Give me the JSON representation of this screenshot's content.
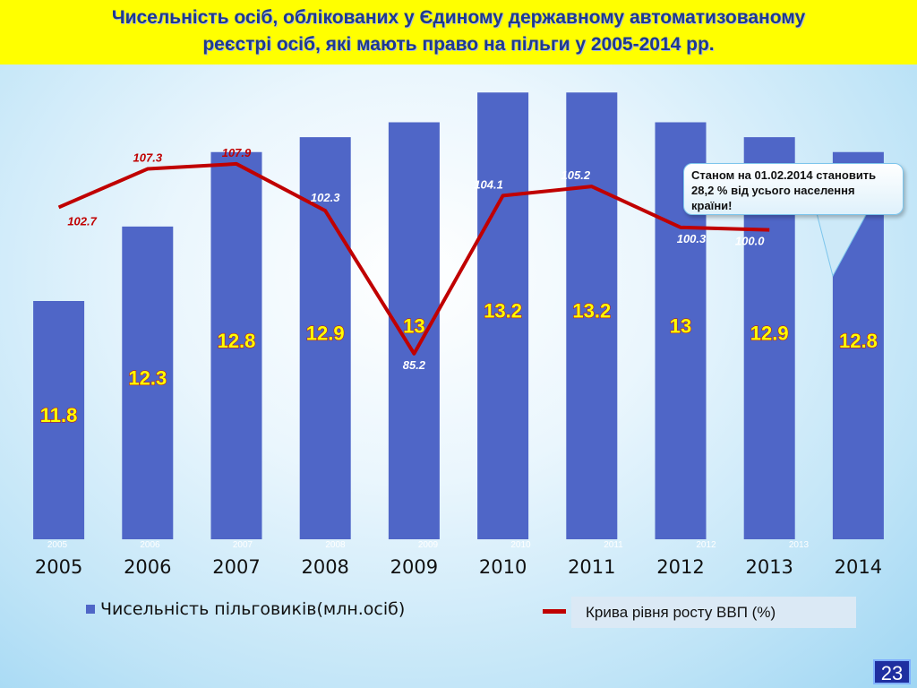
{
  "slide": {
    "title_line1": "Чисельність осіб, облікованих у Єдиному державному автоматизованому",
    "title_line2": "реєстрі осіб, які мають право на пільги у 2005-2014 рр.",
    "callout_text": "Станом на 01.02.2014 становить 28,2 % від усього населення країни!",
    "page_number": "23"
  },
  "legend": {
    "bars_label": "Чисельність пільговиків(млн.осіб)",
    "line_label": "Крива рівня росту ВВП (%)"
  },
  "colors": {
    "bars": "#4f66c7",
    "line": "#c00000",
    "bar_labels": "#ffff00",
    "title_band": "#ffff00"
  },
  "chart_data": {
    "type": "bar",
    "categories": [
      "2005",
      "2006",
      "2007",
      "2008",
      "2009",
      "2010",
      "2011",
      "2012",
      "2013",
      "2014"
    ],
    "series": [
      {
        "name": "Чисельність пільговиків(млн.осіб)",
        "type": "bar",
        "values": [
          11.8,
          12.3,
          12.8,
          12.9,
          13,
          13.2,
          13.2,
          13,
          12.9,
          12.8
        ],
        "labels": [
          "11.8",
          "12.3",
          "12.8",
          "12.9",
          "13",
          "13.2",
          "13.2",
          "13",
          "12.9",
          "12.8"
        ]
      },
      {
        "name": "Крива рівня росту ВВП (%)",
        "type": "line",
        "x": [
          "2005",
          "2006",
          "2007",
          "2008",
          "2009",
          "2010",
          "2011",
          "2012",
          "2013"
        ],
        "values": [
          102.7,
          107.3,
          107.9,
          102.3,
          85.2,
          104.1,
          105.2,
          100.3,
          100.0
        ],
        "labels": [
          "102.7",
          "107.3",
          "107.9",
          "102.3",
          "85.2",
          "104.1",
          "105.2",
          "100.3",
          "100.0"
        ]
      }
    ],
    "secondary_x_labels": [
      "2005",
      "2006",
      "2007",
      "2008",
      "2009",
      "2010",
      "2011",
      "2012",
      "2013"
    ],
    "bar_ylim": [
      10.2,
      13.4
    ],
    "line_ylim": [
      63,
      120
    ],
    "grid": false,
    "legend_position": "bottom"
  }
}
